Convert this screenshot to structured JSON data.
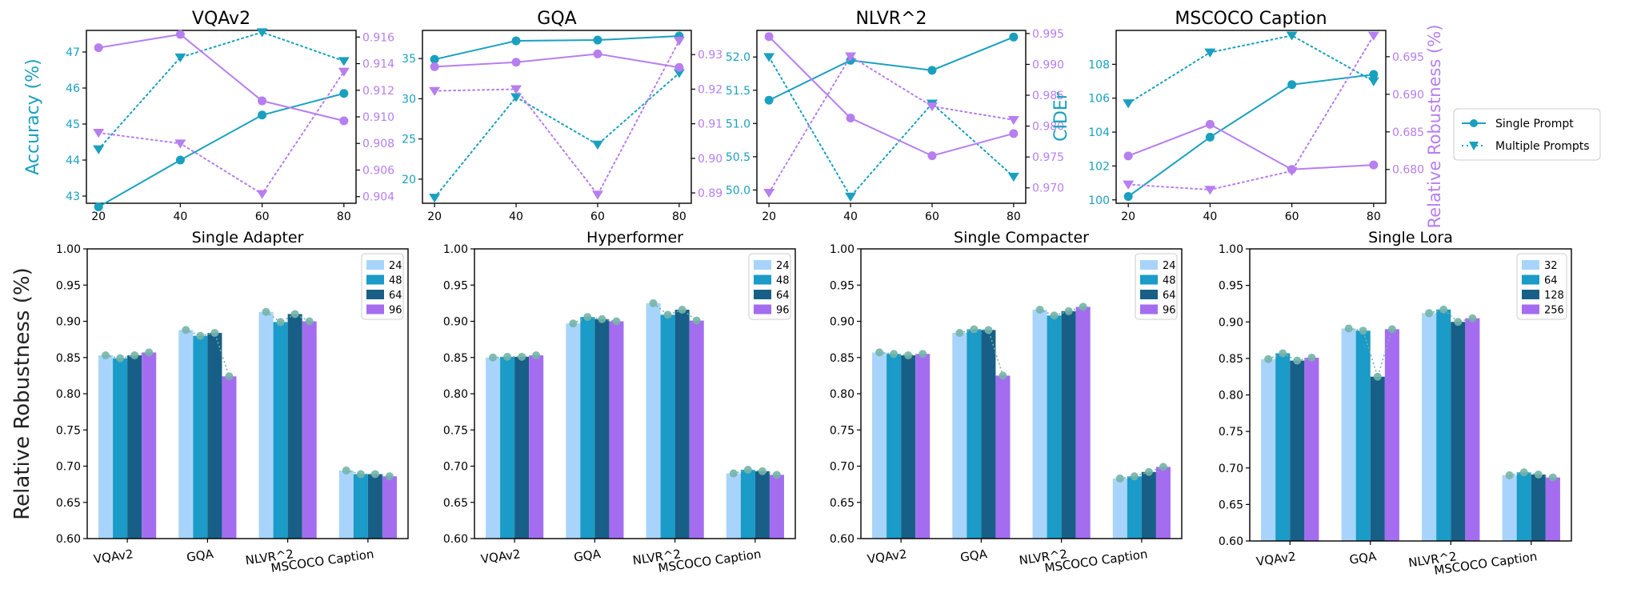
{
  "figure": {
    "ylabel_bottom": "Relative Robustness (%)"
  },
  "colors": {
    "teal": "#1aa0bf",
    "purple": "#b77ef0",
    "bar1": "#a8d4fb",
    "bar2": "#1a9bc8",
    "bar3": "#175f86",
    "bar4": "#a46df0",
    "marker": "#74b4a8"
  },
  "chart_data": [
    {
      "type": "line",
      "title": "VQAv2",
      "x": [
        20,
        40,
        60,
        80
      ],
      "ylabel": "Accuracy (%)",
      "y2label": "",
      "ylim": [
        42.8,
        47.6
      ],
      "yticks": [
        43,
        44,
        45,
        46,
        47
      ],
      "y2lim": [
        0.9035,
        0.9165
      ],
      "y2ticks": [
        0.904,
        0.906,
        0.908,
        0.91,
        0.912,
        0.914,
        0.916
      ],
      "series": [
        {
          "name": "Single Prompt",
          "axis": "left",
          "style": "solid-circle",
          "values": [
            42.7,
            44.0,
            45.25,
            45.85
          ]
        },
        {
          "name": "Multiple Prompts",
          "axis": "left",
          "style": "dotted-triangle",
          "values": [
            44.3,
            46.85,
            47.55,
            46.75
          ]
        },
        {
          "name": "Single Prompt",
          "axis": "right",
          "style": "solid-circle",
          "values": [
            0.9152,
            0.9162,
            0.9112,
            0.9097
          ]
        },
        {
          "name": "Multiple Prompts",
          "axis": "right",
          "style": "dotted-triangle",
          "values": [
            0.9088,
            0.908,
            0.9042,
            0.9134
          ]
        }
      ]
    },
    {
      "type": "line",
      "title": "GQA",
      "x": [
        20,
        40,
        60,
        80
      ],
      "ylabel": "",
      "y2label": "",
      "ylim": [
        17,
        38.5
      ],
      "yticks": [
        20,
        25,
        30,
        35
      ],
      "y2lim": [
        0.887,
        0.937
      ],
      "y2ticks": [
        0.89,
        0.9,
        0.91,
        0.92,
        0.93
      ],
      "series": [
        {
          "name": "Single Prompt",
          "axis": "left",
          "style": "solid-circle",
          "values": [
            34.9,
            37.2,
            37.3,
            37.8
          ]
        },
        {
          "name": "Multiple Prompts",
          "axis": "left",
          "style": "dotted-triangle",
          "values": [
            17.7,
            30.2,
            24.3,
            33.2
          ]
        },
        {
          "name": "Single Prompt",
          "axis": "right",
          "style": "solid-circle",
          "values": [
            0.9265,
            0.9278,
            0.9302,
            0.9263
          ]
        },
        {
          "name": "Multiple Prompts",
          "axis": "right",
          "style": "dotted-triangle",
          "values": [
            0.9195,
            0.92,
            0.8895,
            0.934
          ]
        }
      ]
    },
    {
      "type": "line",
      "title": "NLVR^2",
      "x": [
        20,
        40,
        60,
        80
      ],
      "ylabel": "",
      "y2label": "",
      "ylim": [
        49.8,
        52.4
      ],
      "yticks": [
        50.0,
        50.5,
        51.0,
        51.5,
        52.0
      ],
      "y2lim": [
        0.9675,
        0.9955
      ],
      "y2ticks": [
        0.97,
        0.975,
        0.98,
        0.985,
        0.99,
        0.995
      ],
      "series": [
        {
          "name": "Single Prompt",
          "axis": "left",
          "style": "solid-circle",
          "values": [
            51.35,
            51.95,
            51.8,
            52.3
          ]
        },
        {
          "name": "Multiple Prompts",
          "axis": "left",
          "style": "dotted-triangle",
          "values": [
            52.0,
            49.9,
            51.3,
            50.2
          ]
        },
        {
          "name": "Single Prompt",
          "axis": "right",
          "style": "solid-circle",
          "values": [
            0.9945,
            0.9813,
            0.9752,
            0.9788
          ]
        },
        {
          "name": "Multiple Prompts",
          "axis": "right",
          "style": "dotted-triangle",
          "values": [
            0.9692,
            0.9913,
            0.9832,
            0.981
          ]
        }
      ]
    },
    {
      "type": "line",
      "title": "MSCOCO Caption",
      "x": [
        20,
        40,
        60,
        80
      ],
      "ylabel": "CIDEr",
      "y2label": "Relative Robustness (%)",
      "ylim": [
        99.8,
        110
      ],
      "yticks": [
        100,
        102,
        104,
        106,
        108
      ],
      "y2lim": [
        0.6755,
        0.6985
      ],
      "y2ticks": [
        0.68,
        0.685,
        0.69,
        0.695
      ],
      "series": [
        {
          "name": "Single Prompt",
          "axis": "left",
          "style": "solid-circle",
          "values": [
            100.2,
            103.7,
            106.8,
            107.4
          ]
        },
        {
          "name": "Multiple Prompts",
          "axis": "left",
          "style": "dotted-triangle",
          "values": [
            105.7,
            108.7,
            109.7,
            107.0
          ]
        },
        {
          "name": "Single Prompt",
          "axis": "right",
          "style": "solid-circle",
          "values": [
            0.6818,
            0.686,
            0.68,
            0.6806
          ]
        },
        {
          "name": "Multiple Prompts",
          "axis": "right",
          "style": "dotted-triangle",
          "values": [
            0.678,
            0.6773,
            0.6798,
            0.6978
          ]
        }
      ],
      "legend": {
        "position": "right",
        "entries": [
          "Single Prompt",
          "Multiple Prompts"
        ]
      }
    },
    {
      "type": "bar",
      "title": "Single Adapter",
      "categories": [
        "VQAv2",
        "GQA",
        "NLVR^2",
        "MSCOCO Caption"
      ],
      "ylim": [
        0.6,
        1.0
      ],
      "yticks": [
        "0.60",
        "0.65",
        "0.70",
        "0.75",
        "0.80",
        "0.85",
        "0.90",
        "0.95",
        "1.00"
      ],
      "legend": {
        "position": "top-right"
      },
      "series": [
        {
          "name": "24",
          "values": [
            0.853,
            0.888,
            0.913,
            0.694
          ]
        },
        {
          "name": "48",
          "values": [
            0.849,
            0.88,
            0.899,
            0.689
          ]
        },
        {
          "name": "64",
          "values": [
            0.853,
            0.884,
            0.91,
            0.689
          ]
        },
        {
          "name": "96",
          "values": [
            0.857,
            0.824,
            0.9,
            0.686
          ]
        }
      ]
    },
    {
      "type": "bar",
      "title": "Hyperformer",
      "categories": [
        "VQAv2",
        "GQA",
        "NLVR^2",
        "MSCOCO Caption"
      ],
      "ylim": [
        0.6,
        1.0
      ],
      "yticks": [
        "0.60",
        "0.65",
        "0.70",
        "0.75",
        "0.80",
        "0.85",
        "0.90",
        "0.95",
        "1.00"
      ],
      "legend": {
        "position": "top-right"
      },
      "series": [
        {
          "name": "24",
          "values": [
            0.85,
            0.897,
            0.925,
            0.69
          ]
        },
        {
          "name": "48",
          "values": [
            0.851,
            0.906,
            0.909,
            0.695
          ]
        },
        {
          "name": "64",
          "values": [
            0.851,
            0.903,
            0.916,
            0.693
          ]
        },
        {
          "name": "96",
          "values": [
            0.853,
            0.9,
            0.901,
            0.688
          ]
        }
      ]
    },
    {
      "type": "bar",
      "title": "Single Compacter",
      "categories": [
        "VQAv2",
        "GQA",
        "NLVR^2",
        "MSCOCO Caption"
      ],
      "ylim": [
        0.6,
        1.0
      ],
      "yticks": [
        "0.60",
        "0.65",
        "0.70",
        "0.75",
        "0.80",
        "0.85",
        "0.90",
        "0.95",
        "1.00"
      ],
      "legend": {
        "position": "top-right"
      },
      "series": [
        {
          "name": "24",
          "values": [
            0.857,
            0.884,
            0.916,
            0.683
          ]
        },
        {
          "name": "48",
          "values": [
            0.855,
            0.889,
            0.908,
            0.686
          ]
        },
        {
          "name": "64",
          "values": [
            0.853,
            0.888,
            0.914,
            0.692
          ]
        },
        {
          "name": "96",
          "values": [
            0.855,
            0.825,
            0.92,
            0.699
          ]
        }
      ]
    },
    {
      "type": "bar",
      "title": "Single Lora",
      "categories": [
        "VQAv2",
        "GQA",
        "NLVR^2",
        "MSCOCO Caption"
      ],
      "ylim": [
        0.6,
        1.0
      ],
      "yticks": [
        "0.60",
        "0.65",
        "0.70",
        "0.75",
        "0.80",
        "0.85",
        "0.90",
        "0.95",
        "1.00"
      ],
      "legend": {
        "position": "top-right"
      },
      "series": [
        {
          "name": "32",
          "values": [
            0.849,
            0.891,
            0.912,
            0.69
          ]
        },
        {
          "name": "64",
          "values": [
            0.857,
            0.888,
            0.917,
            0.694
          ]
        },
        {
          "name": "128",
          "values": [
            0.847,
            0.825,
            0.9,
            0.691
          ]
        },
        {
          "name": "256",
          "values": [
            0.851,
            0.89,
            0.905,
            0.687
          ]
        }
      ]
    }
  ]
}
